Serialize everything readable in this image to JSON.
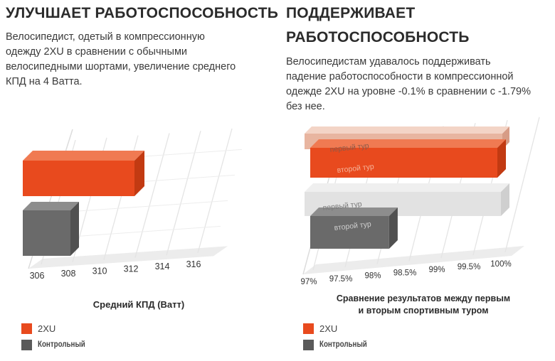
{
  "colors": {
    "orange": "#e84a1e",
    "orange_top": "#f07a52",
    "orange_side": "#c23a12",
    "gray": "#6a6a6a",
    "gray_top": "#8d8d8d",
    "gray_side": "#505050",
    "light_gray": "#e2e2e2",
    "light_orange": "#e8b5a0"
  },
  "left": {
    "title": "УЛУЧШАЕТ РАБОТОСПОСОБНОСТЬ",
    "description": "Велосипедист, одетый в компрессионную одежду 2XU в сравнении с обычными велосипедными шортами, увеличение среднего КПД на 4 Ватта.",
    "legend": [
      {
        "label": "2XU",
        "color": "#e84a1e"
      },
      {
        "label": "Контрольный",
        "color": "#5a5a5a"
      }
    ]
  },
  "right": {
    "title_line1": "ПОДДЕРЖИВАЕТ",
    "title_line2": "РАБОТОСПОСОБНОСТЬ",
    "description": "Велосипедистам удавалось поддерживать падение работоспособности в компрессионной одежде 2XU на уровне -0.1% в сравнении с -1.79% без нее.",
    "legend": [
      {
        "label": "2XU",
        "color": "#e84a1e"
      },
      {
        "label": "Контрольный",
        "color": "#5a5a5a"
      }
    ]
  },
  "chart_data": [
    {
      "type": "bar",
      "orientation": "horizontal",
      "title": "",
      "xlabel": "Средний КПД (Ватт)",
      "ylabel": "",
      "x_ticks": [
        "306",
        "308",
        "310",
        "312",
        "314",
        "316"
      ],
      "xlim": [
        305,
        317
      ],
      "series": [
        {
          "name": "2XU",
          "values": [
            313
          ]
        },
        {
          "name": "Контрольный",
          "values": [
            309
          ]
        }
      ],
      "grid": true,
      "legend": "bottom-left"
    },
    {
      "type": "bar",
      "orientation": "horizontal",
      "title": "",
      "xlabel": "Сравнение результатов между первым и вторым спортивным туром",
      "ylabel": "",
      "x_ticks": [
        "97%",
        "97.5%",
        "98%",
        "98.5%",
        "99%",
        "99.5%",
        "100%"
      ],
      "xlim": [
        96.8,
        100.1
      ],
      "groups": [
        {
          "series": "2XU",
          "bars": [
            {
              "label": "первый тур",
              "value": 100
            },
            {
              "label": "второй тур",
              "value": 99.9
            }
          ]
        },
        {
          "series": "Контрольный",
          "bars": [
            {
              "label": "первый тур",
              "value": 100
            },
            {
              "label": "второй тур",
              "value": 98.21
            }
          ]
        }
      ],
      "grid": true,
      "legend": "bottom-left"
    }
  ]
}
